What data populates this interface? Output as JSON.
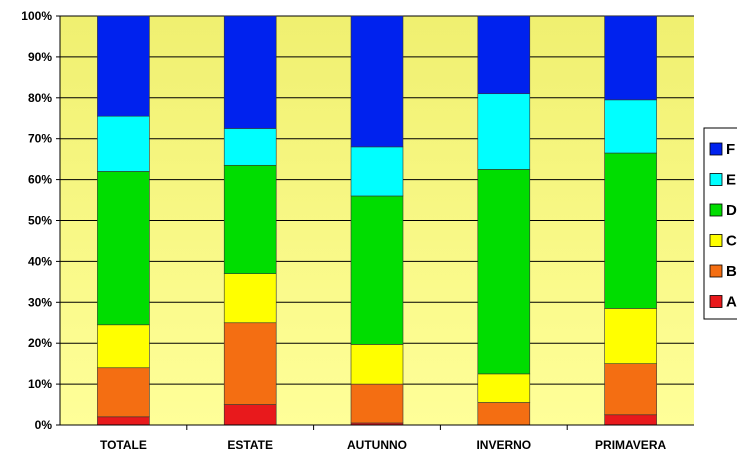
{
  "chart_data": {
    "type": "bar",
    "stacked": "percent",
    "categories": [
      "TOTALE",
      "ESTATE",
      "AUTUNNO",
      "INVERNO",
      "PRIMAVERA"
    ],
    "series": [
      {
        "name": "A",
        "color": "#e8191c",
        "values": [
          2,
          5,
          0.5,
          0,
          2.5
        ]
      },
      {
        "name": "B",
        "color": "#f46e12",
        "values": [
          12,
          20,
          9.5,
          5.5,
          12.5
        ]
      },
      {
        "name": "C",
        "color": "#ffff00",
        "values": [
          10.5,
          12,
          9.7,
          7,
          13.5
        ]
      },
      {
        "name": "D",
        "color": "#00dd00",
        "values": [
          37.5,
          26.5,
          36.3,
          50,
          38
        ]
      },
      {
        "name": "E",
        "color": "#00ffff",
        "values": [
          13.5,
          9,
          12,
          18.5,
          13
        ]
      },
      {
        "name": "F",
        "color": "#0022ee",
        "values": [
          24.5,
          27.5,
          32,
          19,
          20.5
        ]
      }
    ],
    "yticks": [
      "0%",
      "10%",
      "20%",
      "30%",
      "40%",
      "50%",
      "60%",
      "70%",
      "80%",
      "90%",
      "100%"
    ],
    "ylim": [
      0,
      100
    ],
    "grid": true,
    "legend_position": "right",
    "plot_background": "#f0f070",
    "plot_background_bottom": "#ffff99"
  }
}
